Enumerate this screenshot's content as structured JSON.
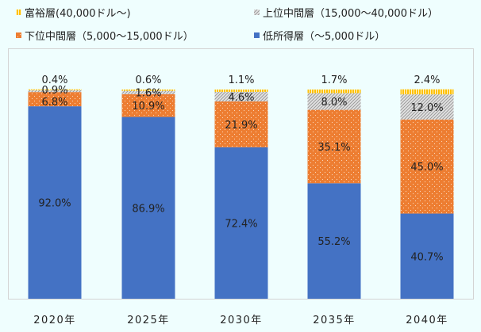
{
  "chart_data": {
    "type": "bar",
    "stacked": true,
    "categories": [
      "2020年",
      "2025年",
      "2030年",
      "2035年",
      "2040年"
    ],
    "series": [
      {
        "name": "低所得層（～5,000ドル）",
        "values": [
          92.0,
          86.9,
          72.4,
          55.2,
          40.7
        ],
        "color": "#4472c4",
        "pattern": "solid"
      },
      {
        "name": "下位中間層（5,000～15,000ドル）",
        "values": [
          6.8,
          10.9,
          21.9,
          35.1,
          45.0
        ],
        "color": "#ed7d31",
        "pattern": "dots"
      },
      {
        "name": "上位中間層（15,000～40,000ドル）",
        "values": [
          0.9,
          1.6,
          4.6,
          8.0,
          12.0
        ],
        "color": "#a5a5a5",
        "pattern": "diagonal-hatch"
      },
      {
        "name": "富裕層(40,000ドル～)",
        "values": [
          0.4,
          0.6,
          1.1,
          1.7,
          2.4
        ],
        "color": "#ffc000",
        "pattern": "vertical-stripes"
      }
    ],
    "data_labels": [
      [
        "92.0%",
        "86.9%",
        "72.4%",
        "55.2%",
        "40.7%"
      ],
      [
        "6.8%",
        "10.9%",
        "21.9%",
        "35.1%",
        "45.0%"
      ],
      [
        "0.9%",
        "1.6%",
        "4.6%",
        "8.0%",
        "12.0%"
      ],
      [
        "0.4%",
        "0.6%",
        "1.1%",
        "1.7%",
        "2.4%"
      ]
    ],
    "ylim": [
      0,
      100
    ],
    "grid": false,
    "legend_position": "top",
    "legend_order": [
      3,
      2,
      1,
      0
    ]
  }
}
